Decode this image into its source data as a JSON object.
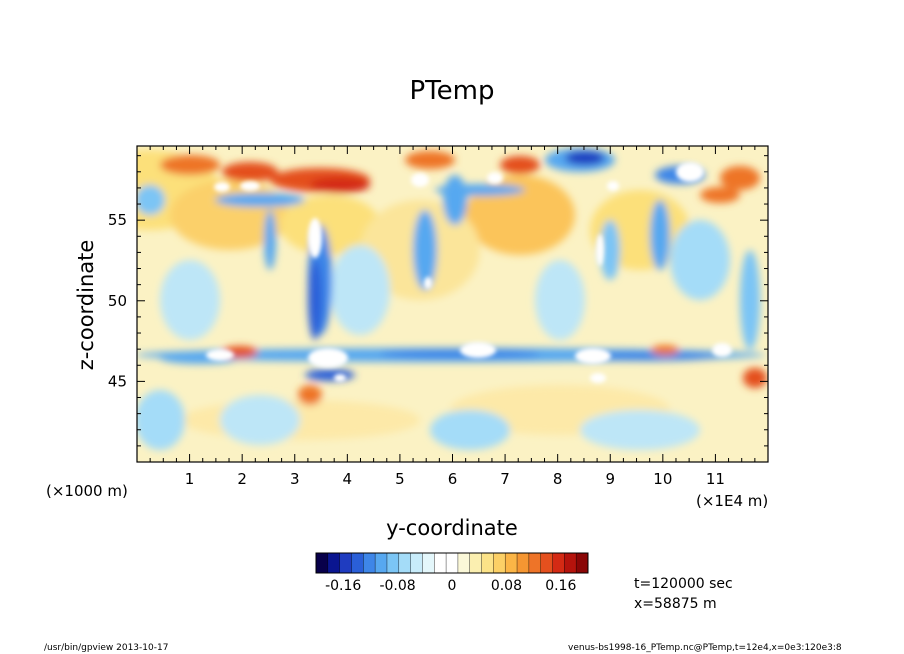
{
  "chart_data": {
    "type": "heatmap",
    "title": "PTemp",
    "xlabel": "y-coordinate",
    "ylabel": "z-coordinate",
    "x_unit_note": "(×1000 m)",
    "x_scale_note": "(×1E4 m)",
    "x_ticks": [
      "1",
      "2",
      "3",
      "4",
      "5",
      "6",
      "7",
      "8",
      "9",
      "10",
      "11"
    ],
    "y_ticks": [
      "45",
      "50",
      "55"
    ],
    "xlim": [
      0,
      12
    ],
    "ylim": [
      40,
      59.6
    ],
    "colorbar": {
      "range": [
        -0.2,
        0.2
      ],
      "tick_labels": [
        "-0.16",
        "-0.08",
        "0",
        "0.08",
        "0.16"
      ],
      "tick_values": [
        -0.16,
        -0.08,
        0,
        0.08,
        0.16
      ],
      "colors": [
        "#08004a",
        "#0a1590",
        "#1f3cc0",
        "#2a5fd8",
        "#3e86e8",
        "#57a8f0",
        "#7bc5f5",
        "#a4dcf8",
        "#c8ecfa",
        "#e4f7fb",
        "#ffffff",
        "#ffffff",
        "#fbf8d8",
        "#fbefb0",
        "#fce388",
        "#fcd066",
        "#fbb546",
        "#f59632",
        "#ee7428",
        "#e4501e",
        "#d42a14",
        "#b5130c",
        "#8a0606"
      ]
    },
    "annotations": {
      "time": "t=120000 sec",
      "position": "x=58875 m"
    }
  },
  "footer": {
    "left": "/usr/bin/gpview   2013-10-17",
    "right": "venus-bs1998-16_PTemp.nc@PTemp,t=12e4,x=0e3:120e3:8"
  }
}
